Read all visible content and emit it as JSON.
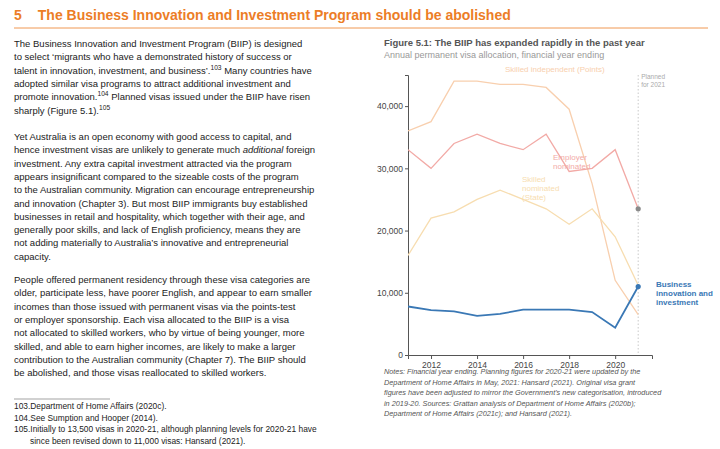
{
  "section": {
    "number": "5",
    "title": "The Business Innovation and Investment Program should be abolished"
  },
  "paragraphs": [
    [
      [
        "The Business Innovation and Investment Program (BIIP) is designed"
      ],
      [
        "to select ‘migrants who have a demonstrated history of success or"
      ],
      [
        "talent in innovation, investment, and business’.",
        {
          "text": "103",
          "style": "sup"
        },
        " Many countries have"
      ],
      [
        "adopted similar visa programs to attract additional investment and"
      ],
      [
        "promote innovation.",
        {
          "text": "104",
          "style": "sup"
        },
        " Planned visas issued under the BIIP have risen"
      ],
      [
        "sharply (Figure 5.1).",
        {
          "text": "105",
          "style": "sup"
        }
      ]
    ],
    [
      [
        "Yet Australia is an open economy with good access to capital, and"
      ],
      [
        "hence investment visas are unlikely to generate much ",
        {
          "text": "additional",
          "style": "italic"
        },
        " foreign"
      ],
      [
        "investment. Any extra capital investment attracted via the program"
      ],
      [
        "appears insignificant compared to the sizeable costs of the program"
      ],
      [
        "to the Australian community. Migration can encourage entrepreneurship"
      ],
      [
        "and innovation (Chapter 3). But most BIIP immigrants buy established"
      ],
      [
        "businesses in retail and hospitality, which together with their age, and"
      ],
      [
        "generally poor skills, and lack of English proficiency, means they are"
      ],
      [
        "not adding materially to Australia’s innovative and entrepreneurial"
      ],
      [
        "capacity."
      ]
    ],
    [
      [
        "People offered permanent residency through these visa categories are"
      ],
      [
        "older, participate less, have poorer English, and appear to earn smaller"
      ],
      [
        "incomes than those issued with permanent visas via the points-test"
      ],
      [
        "or employer sponsorship. Each visa allocated to the BIIP is a visa"
      ],
      [
        "not allocated to skilled workers, who by virtue of being younger, more"
      ],
      [
        "skilled, and able to earn higher incomes, are likely to make a larger"
      ],
      [
        "contribution to the Australian community (Chapter 7). The BIIP should"
      ],
      [
        "be abolished, and those visas reallocated to skilled workers."
      ]
    ]
  ],
  "footnotes": [
    [
      "103.Department of Home Affairs (2020c)."
    ],
    [
      "104.See Sumption and Hooper (2014)."
    ],
    [
      "105.Initially to 13,500 visas in 2020-21, although planning levels for 2020-21 have",
      "since been revised down to 11,000 visas: Hansard (2021)."
    ]
  ],
  "chart_data": {
    "type": "line",
    "title": "Figure 5.1: The BIIP has expanded rapidly in the past year",
    "subtitle": "Annual permanent visa allocation, financial year ending",
    "x": [
      2011,
      2012,
      2013,
      2014,
      2015,
      2016,
      2017,
      2018,
      2019,
      2020,
      2021
    ],
    "xlim": [
      2011,
      2021.6
    ],
    "xticks": [
      2012,
      2014,
      2016,
      2018,
      2020
    ],
    "ylim": [
      0,
      45000
    ],
    "yticks": [
      0,
      {
        "value": 10000,
        "label": "10,000"
      },
      {
        "value": 20000,
        "label": "20,000"
      },
      {
        "value": 30000,
        "label": "30,000"
      },
      {
        "value": 40000,
        "label": "40,000"
      }
    ],
    "grid": false,
    "series": [
      {
        "name": "Skilled independent (Points)",
        "color": "#f8cfae",
        "values": [
          36000,
          37500,
          44000,
          44000,
          43500,
          43500,
          43000,
          39500,
          27500,
          12000,
          6500
        ]
      },
      {
        "name": "Employer nominated",
        "color": "#f2aaa6",
        "marker": "end",
        "values": [
          33000,
          30000,
          34000,
          35500,
          34000,
          33000,
          35500,
          29500,
          30000,
          33000,
          23500
        ]
      },
      {
        "name": "Skilled nominated (State)",
        "color": "#f7ddb0",
        "values": [
          16000,
          22000,
          23000,
          25000,
          26500,
          25000,
          23500,
          21000,
          23500,
          19000,
          11200
        ]
      },
      {
        "name": "Business innovation and investment",
        "color": "#3a78b5",
        "marker": "end",
        "values": [
          7800,
          7200,
          7000,
          6300,
          6600,
          7300,
          7300,
          7300,
          6900,
          4400,
          11000
        ]
      }
    ],
    "annotations": [
      {
        "x": 2021,
        "text": [
          "Planned",
          "for 2021"
        ]
      }
    ],
    "notes": [
      "Notes: Financial year ending. Planning figures for 2020-21 were updated by the",
      "Department of Home Affairs in May, 2021: Hansard (2021). Original visa grant",
      "figures have been adjusted to mirror the Government's new categorisation, introduced",
      "in 2019-20. Sources: Grattan analysis of Department of Home Affairs (2020b);",
      "Department of Home Affairs (2021c); and Hansard (2021)."
    ]
  }
}
